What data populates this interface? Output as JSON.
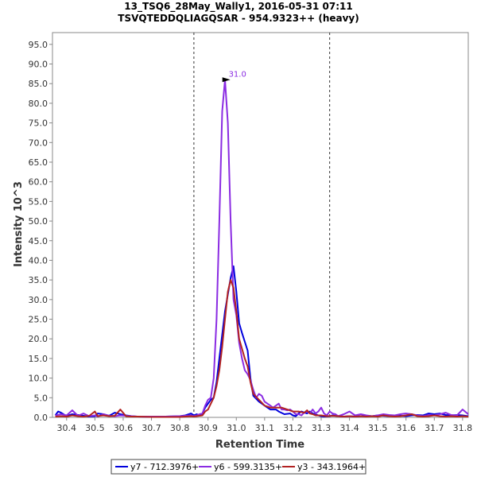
{
  "chart_data": {
    "type": "line",
    "title_lines": [
      "13_TSQ6_28May_Wally1, 2016-05-31 07:11",
      "TSVQTEDDQLIAGQSAR - 954.9323++ (heavy)"
    ],
    "xlabel": "Retention Time",
    "ylabel": "Intensity 10^3",
    "xlim": [
      30.35,
      31.82
    ],
    "ylim": [
      0,
      98
    ],
    "x_ticks": [
      "30.4",
      "30.5",
      "30.6",
      "30.7",
      "30.8",
      "30.9",
      "31.0",
      "31.1",
      "31.2",
      "31.3",
      "31.4",
      "31.5",
      "31.6",
      "31.7",
      "31.8"
    ],
    "y_ticks": [
      "0.0",
      "5.0",
      "10.0",
      "15.0",
      "20.0",
      "25.0",
      "30.0",
      "35.0",
      "40.0",
      "45.0",
      "50.0",
      "55.0",
      "60.0",
      "65.0",
      "70.0",
      "75.0",
      "80.0",
      "85.0",
      "90.0",
      "95.0"
    ],
    "boundaries": [
      30.85,
      31.33
    ],
    "grid": false,
    "legend_position": "bottom",
    "annotation": {
      "x": 30.99,
      "y": 86.0,
      "label": "31.0",
      "color": "#8a2be2"
    },
    "series": [
      {
        "name": "y7 - 712.3976+",
        "color": "#0000dd",
        "x": [
          30.36,
          30.37,
          30.38,
          30.4,
          30.42,
          30.44,
          30.46,
          30.48,
          30.5,
          30.51,
          30.53,
          30.55,
          30.57,
          30.59,
          30.61,
          30.63,
          30.65,
          30.7,
          30.75,
          30.8,
          30.82,
          30.84,
          30.85,
          30.86,
          30.87,
          30.88,
          30.89,
          30.91,
          30.92,
          30.93,
          30.94,
          30.96,
          30.98,
          30.99,
          31.0,
          31.01,
          31.02,
          31.04,
          31.05,
          31.06,
          31.08,
          31.09,
          31.11,
          31.12,
          31.14,
          31.15,
          31.17,
          31.19,
          31.2,
          31.21,
          31.22,
          31.23,
          31.25,
          31.26,
          31.27,
          31.29,
          31.3,
          31.31,
          31.33,
          31.34,
          31.36,
          31.38,
          31.4,
          31.42,
          31.44,
          31.46,
          31.48,
          31.5,
          31.52,
          31.54,
          31.56,
          31.58,
          31.6,
          31.62,
          31.64,
          31.66,
          31.68,
          31.7,
          31.72,
          31.74,
          31.76,
          31.78,
          31.8,
          31.82
        ],
        "y": [
          0.5,
          1.5,
          1.2,
          0.3,
          0.8,
          0.6,
          0.4,
          0.2,
          0.3,
          1.0,
          0.8,
          0.4,
          1.2,
          0.8,
          0.5,
          0.3,
          0.2,
          0.1,
          0.2,
          0.3,
          0.5,
          1.0,
          0.5,
          0.8,
          0.5,
          1.0,
          2.5,
          4.5,
          5.0,
          9.0,
          15.0,
          27.0,
          35.5,
          38.5,
          32.0,
          24.0,
          21.5,
          17.0,
          10.0,
          5.5,
          4.0,
          3.5,
          2.5,
          2.0,
          2.0,
          1.5,
          0.8,
          1.0,
          0.5,
          0.3,
          1.0,
          1.5,
          1.0,
          1.5,
          1.0,
          0.5,
          0.3,
          0.2,
          0.3,
          0.5,
          0.3,
          0.2,
          0.3,
          0.2,
          0.3,
          0.4,
          0.3,
          0.5,
          0.4,
          0.3,
          0.5,
          0.4,
          0.3,
          0.5,
          0.6,
          0.5,
          1.0,
          0.8,
          1.0,
          0.6,
          0.5,
          0.6,
          0.5,
          0.3
        ]
      },
      {
        "name": "y6 - 599.3135+",
        "color": "#8a2be2",
        "x": [
          30.36,
          30.38,
          30.4,
          30.42,
          30.44,
          30.46,
          30.48,
          30.5,
          30.51,
          30.53,
          30.55,
          30.57,
          30.59,
          30.61,
          30.63,
          30.65,
          30.7,
          30.75,
          30.8,
          30.82,
          30.84,
          30.85,
          30.86,
          30.87,
          30.88,
          30.89,
          30.9,
          30.91,
          30.92,
          30.93,
          30.94,
          30.95,
          30.96,
          30.97,
          30.98,
          30.99,
          31.0,
          31.01,
          31.02,
          31.03,
          31.04,
          31.05,
          31.06,
          31.07,
          31.08,
          31.09,
          31.1,
          31.12,
          31.13,
          31.14,
          31.15,
          31.16,
          31.17,
          31.18,
          31.19,
          31.2,
          31.21,
          31.22,
          31.23,
          31.24,
          31.25,
          31.26,
          31.27,
          31.28,
          31.29,
          31.3,
          31.31,
          31.32,
          31.33,
          31.34,
          31.35,
          31.36,
          31.38,
          31.4,
          31.42,
          31.44,
          31.46,
          31.48,
          31.5,
          31.52,
          31.54,
          31.56,
          31.58,
          31.6,
          31.62,
          31.64,
          31.66,
          31.68,
          31.7,
          31.72,
          31.74,
          31.76,
          31.78,
          31.8,
          31.82
        ],
        "y": [
          0.5,
          0.8,
          0.5,
          1.8,
          0.4,
          1.0,
          0.3,
          0.5,
          0.2,
          0.8,
          0.4,
          0.3,
          0.5,
          0.4,
          0.3,
          0.2,
          0.2,
          0.2,
          0.3,
          0.4,
          0.5,
          0.3,
          0.5,
          0.8,
          1.0,
          3.0,
          4.5,
          5.0,
          10.0,
          25.0,
          50.0,
          78.0,
          86.0,
          75.0,
          50.0,
          30.0,
          26.0,
          19.0,
          15.0,
          12.0,
          11.0,
          9.5,
          7.0,
          5.0,
          6.0,
          5.5,
          4.0,
          3.0,
          2.5,
          3.0,
          3.5,
          2.0,
          2.0,
          1.8,
          2.0,
          1.5,
          0.8,
          0.8,
          0.5,
          1.2,
          1.5,
          1.0,
          2.0,
          1.0,
          1.5,
          2.5,
          1.0,
          0.5,
          1.5,
          1.0,
          0.8,
          0.3,
          0.8,
          1.5,
          0.5,
          0.8,
          0.5,
          0.3,
          0.5,
          0.8,
          0.6,
          0.5,
          0.8,
          1.0,
          0.8,
          0.5,
          0.3,
          0.6,
          0.5,
          0.8,
          1.2,
          0.6,
          0.5,
          2.0,
          0.8
        ]
      },
      {
        "name": "y3 - 343.1964+",
        "color": "#b22222",
        "x": [
          30.36,
          30.38,
          30.4,
          30.42,
          30.44,
          30.46,
          30.48,
          30.5,
          30.51,
          30.53,
          30.55,
          30.57,
          30.59,
          30.61,
          30.63,
          30.65,
          30.7,
          30.75,
          30.8,
          30.82,
          30.84,
          30.85,
          30.86,
          30.87,
          30.88,
          30.89,
          30.9,
          30.91,
          30.92,
          30.93,
          30.94,
          30.95,
          30.96,
          30.97,
          30.98,
          30.99,
          31.0,
          31.01,
          31.02,
          31.03,
          31.04,
          31.05,
          31.06,
          31.08,
          31.1,
          31.12,
          31.14,
          31.16,
          31.18,
          31.2,
          31.22,
          31.24,
          31.25,
          31.26,
          31.27,
          31.28,
          31.3,
          31.32,
          31.34,
          31.36,
          31.38,
          31.4,
          31.42,
          31.44,
          31.46,
          31.48,
          31.5,
          31.52,
          31.54,
          31.56,
          31.58,
          31.6,
          31.62,
          31.64,
          31.66,
          31.68,
          31.7,
          31.72,
          31.74,
          31.76,
          31.78,
          31.8,
          31.82
        ],
        "y": [
          0.2,
          0.3,
          0.2,
          0.5,
          0.3,
          0.2,
          0.4,
          1.5,
          0.3,
          0.5,
          0.3,
          0.4,
          2.0,
          0.3,
          0.2,
          0.2,
          0.1,
          0.1,
          0.1,
          0.2,
          0.3,
          0.2,
          0.3,
          0.4,
          0.5,
          1.5,
          2.0,
          3.5,
          5.0,
          8.0,
          12.0,
          18.0,
          25.0,
          32.0,
          35.0,
          33.0,
          27.0,
          20.0,
          17.5,
          15.0,
          13.0,
          9.0,
          6.0,
          4.5,
          3.0,
          2.5,
          2.5,
          2.5,
          2.0,
          1.5,
          1.5,
          1.2,
          1.8,
          1.0,
          0.8,
          0.5,
          0.5,
          0.3,
          0.4,
          0.3,
          0.2,
          0.3,
          0.2,
          0.3,
          0.2,
          0.3,
          0.2,
          0.5,
          0.3,
          0.2,
          0.3,
          0.5,
          0.8,
          0.3,
          0.2,
          0.3,
          0.5,
          0.3,
          0.2,
          0.3,
          0.2,
          0.3,
          0.2
        ]
      }
    ]
  }
}
